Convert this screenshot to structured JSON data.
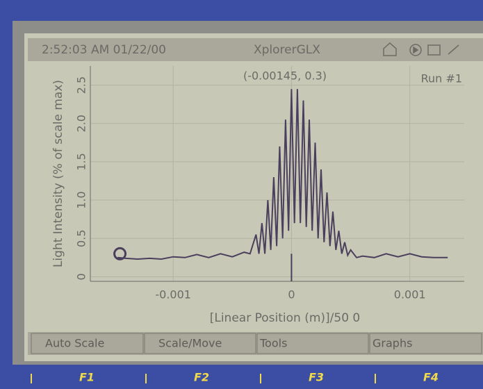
{
  "status_bar": {
    "clock": "2:52:03 AM  01/22/00",
    "device": "XplorerGLX"
  },
  "chart_data": {
    "type": "line",
    "cursor_label": "(-0.00145, 0.3)",
    "run_label": "Run #1",
    "x_label": "[Linear Position (m)]/50 0",
    "y_label": "Light Intensity (% of scale max)",
    "cursor": {
      "x": -0.00145,
      "y": 0.3
    },
    "x": [
      -0.00147,
      -0.0014,
      -0.0013,
      -0.0012,
      -0.0011,
      -0.001,
      -0.0009,
      -0.0008,
      -0.0007,
      -0.0006,
      -0.0005,
      -0.0004,
      -0.00035,
      -0.0003,
      -0.000275,
      -0.00025,
      -0.000225,
      -0.0002,
      -0.000175,
      -0.00015,
      -0.000125,
      -0.0001,
      -7.5e-05,
      -5e-05,
      -2.5e-05,
      0,
      2.5e-05,
      5e-05,
      7.5e-05,
      0.0001,
      0.000125,
      0.00015,
      0.000175,
      0.0002,
      0.000225,
      0.00025,
      0.000275,
      0.0003,
      0.000325,
      0.00035,
      0.000375,
      0.0004,
      0.000425,
      0.00045,
      0.000475,
      0.0005,
      0.00055,
      0.0006,
      0.0007,
      0.0008,
      0.0009,
      0.001,
      0.0011,
      0.0012,
      0.00132
    ],
    "values": [
      0.25,
      0.24,
      0.23,
      0.24,
      0.23,
      0.26,
      0.25,
      0.29,
      0.25,
      0.3,
      0.26,
      0.32,
      0.3,
      0.55,
      0.3,
      0.7,
      0.3,
      1.0,
      0.35,
      1.3,
      0.4,
      1.7,
      0.5,
      2.05,
      0.6,
      2.45,
      0.7,
      2.45,
      0.7,
      2.3,
      0.65,
      2.05,
      0.6,
      1.75,
      0.5,
      1.4,
      0.45,
      1.1,
      0.4,
      0.85,
      0.35,
      0.6,
      0.3,
      0.45,
      0.28,
      0.35,
      0.25,
      0.27,
      0.25,
      0.3,
      0.26,
      0.3,
      0.26,
      0.25,
      0.25
    ],
    "color": "#4a3f5c",
    "xlim": [
      -0.0017,
      0.00146
    ],
    "ylim": [
      -0.06,
      2.75
    ],
    "xticks": [
      -0.001,
      0,
      0.001
    ],
    "yticks": [
      0,
      0.5,
      {
        "value": 1,
        "label": "1.0"
      },
      1.5,
      {
        "value": 2,
        "label": "2.0"
      },
      2.5
    ],
    "grid": true
  },
  "softkeys": [
    "Auto Scale",
    "Scale/Move",
    "Tools",
    "Graphs"
  ],
  "fkeys": [
    "F1",
    "F2",
    "F3",
    "F4"
  ]
}
